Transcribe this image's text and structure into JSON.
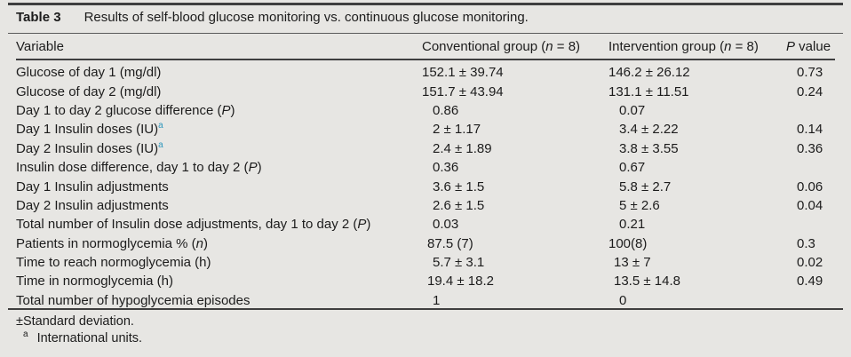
{
  "colors": {
    "background": "#e7e6e3",
    "text": "#1c1c1c",
    "rule": "#3f3f3f",
    "footnote_marker_accent": "#2d96bc"
  },
  "table": {
    "label": "Table 3",
    "caption": "Results of self-blood glucose monitoring vs. continuous glucose monitoring.",
    "columns": [
      "Variable",
      "Conventional group (n = 8)",
      "Intervention group (n = 8)",
      "P value"
    ],
    "rows": [
      {
        "variable": "Glucose of day 1 (mg/dl)",
        "conventional": "152.1 ± 39.74",
        "intervention": "146.2 ± 26.12",
        "p_value": "0.73"
      },
      {
        "variable": "Glucose of day 2 (mg/dl)",
        "conventional": "151.7 ± 43.94",
        "intervention": "131.1 ± 11.51",
        "p_value": "0.24"
      },
      {
        "variable": "Day 1 to day 2 glucose difference (P)",
        "conventional": "0.86",
        "intervention": "0.07",
        "p_value": ""
      },
      {
        "variable": "Day 1 Insulin doses (IU)^a",
        "conventional": "2 ± 1.17",
        "intervention": "3.4 ± 2.22",
        "p_value": "0.14"
      },
      {
        "variable": "Day 2 Insulin doses (IU)^a",
        "conventional": "2.4 ± 1.89",
        "intervention": "3.8 ± 3.55",
        "p_value": "0.36"
      },
      {
        "variable": "Insulin dose difference, day 1 to day 2 (P)",
        "conventional": "0.36",
        "intervention": "0.67",
        "p_value": ""
      },
      {
        "variable": "Day 1 Insulin adjustments",
        "conventional": "3.6 ± 1.5",
        "intervention": "5.8 ± 2.7",
        "p_value": "0.06"
      },
      {
        "variable": "Day 2 Insulin adjustments",
        "conventional": "2.6 ± 1.5",
        "intervention": "5 ± 2.6",
        "p_value": "0.04"
      },
      {
        "variable": "Total number of Insulin dose adjustments, day 1 to day 2 (P)",
        "conventional": "0.03",
        "intervention": "0.21",
        "p_value": ""
      },
      {
        "variable": "Patients in normoglycemia % (n)",
        "conventional": "87.5 (7)",
        "intervention": "100(8)",
        "p_value": "0.3"
      },
      {
        "variable": "Time to reach normoglycemia (h)",
        "conventional": "5.7 ± 3.1",
        "intervention": "13 ± 7",
        "p_value": "0.02"
      },
      {
        "variable": "Time in normoglycemia (h)",
        "conventional": "19.4 ± 18.2",
        "intervention": "13.5 ± 14.8",
        "p_value": "0.49"
      },
      {
        "variable": "Total number of hypoglycemia episodes",
        "conventional": "1",
        "intervention": "0",
        "p_value": ""
      }
    ],
    "footnotes": [
      "±Standard deviation.",
      "^a International units."
    ]
  }
}
